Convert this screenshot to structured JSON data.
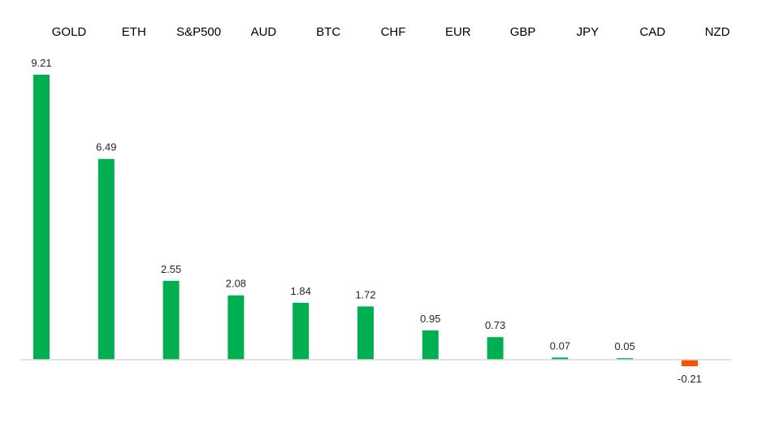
{
  "chart_data": {
    "type": "bar",
    "title": "",
    "xlabel": "",
    "ylabel": "",
    "categories": [
      "GOLD",
      "ETH",
      "S&P500",
      "AUD",
      "BTC",
      "CHF",
      "EUR",
      "GBP",
      "JPY",
      "CAD",
      "NZD"
    ],
    "values": [
      9.21,
      6.49,
      2.55,
      2.08,
      1.84,
      1.72,
      0.95,
      0.73,
      0.07,
      0.05,
      -0.21
    ],
    "value_labels": [
      "9.21",
      "6.49",
      "2.55",
      "2.08",
      "1.84",
      "1.72",
      "0.95",
      "0.73",
      "0.07",
      "0.05",
      "-0.21"
    ],
    "ylim": [
      -0.21,
      9.21
    ],
    "grid": false,
    "legend": "none",
    "category_labels_position": "top",
    "colors": {
      "positive": "#00B050",
      "negative": "#FF5000",
      "axis": "#D9D9D9",
      "label": "#000000",
      "value_label": "#262626"
    }
  }
}
